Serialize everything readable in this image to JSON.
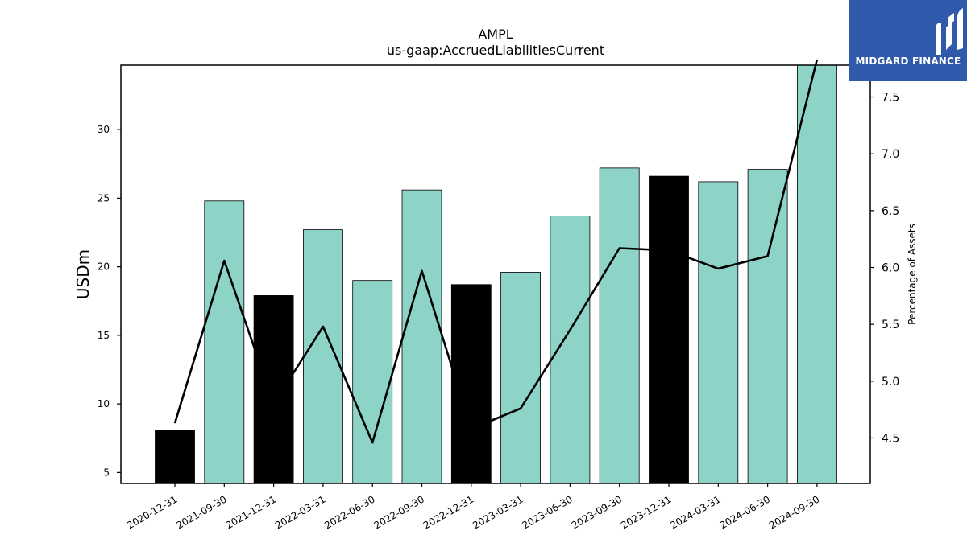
{
  "brand": {
    "name": "MIDGARD FINANCE"
  },
  "chart_data": {
    "type": "bar",
    "title": "AMPL",
    "subtitle": "us-gaap:AccruedLiabilitiesCurrent",
    "ylabel": "USDm",
    "y2label": "Percentage of Assets",
    "categories": [
      "2020-12-31",
      "2021-09-30",
      "2021-12-31",
      "2022-03-31",
      "2022-06-30",
      "2022-09-30",
      "2022-12-31",
      "2023-03-31",
      "2023-06-30",
      "2023-09-30",
      "2023-12-31",
      "2024-03-31",
      "2024-06-30",
      "2024-09-30"
    ],
    "series": [
      {
        "type": "bar",
        "values": [
          8.1,
          24.8,
          17.9,
          22.7,
          19.0,
          25.6,
          18.7,
          19.6,
          23.7,
          27.2,
          26.6,
          26.2,
          27.1,
          34.9
        ],
        "colors": [
          "#000000",
          "#8dd3c7",
          "#000000",
          "#8dd3c7",
          "#8dd3c7",
          "#8dd3c7",
          "#000000",
          "#8dd3c7",
          "#8dd3c7",
          "#8dd3c7",
          "#000000",
          "#8dd3c7",
          "#8dd3c7",
          "#8dd3c7"
        ]
      },
      {
        "type": "line",
        "axis": "right",
        "color": "#000000",
        "values": [
          4.63,
          6.06,
          4.8,
          5.48,
          4.46,
          5.97,
          4.58,
          4.76,
          5.45,
          6.17,
          6.15,
          5.99,
          6.1,
          7.83
        ]
      }
    ],
    "ylim": [
      4.2,
      34.7
    ],
    "yticks": [
      5,
      10,
      15,
      20,
      25,
      30
    ],
    "y2lim": [
      4.1,
      7.78
    ],
    "y2ticks": [
      "4.5",
      "5.0",
      "5.5",
      "6.0",
      "6.5",
      "7.0",
      "7.5"
    ],
    "grid": false,
    "legend": "none"
  }
}
